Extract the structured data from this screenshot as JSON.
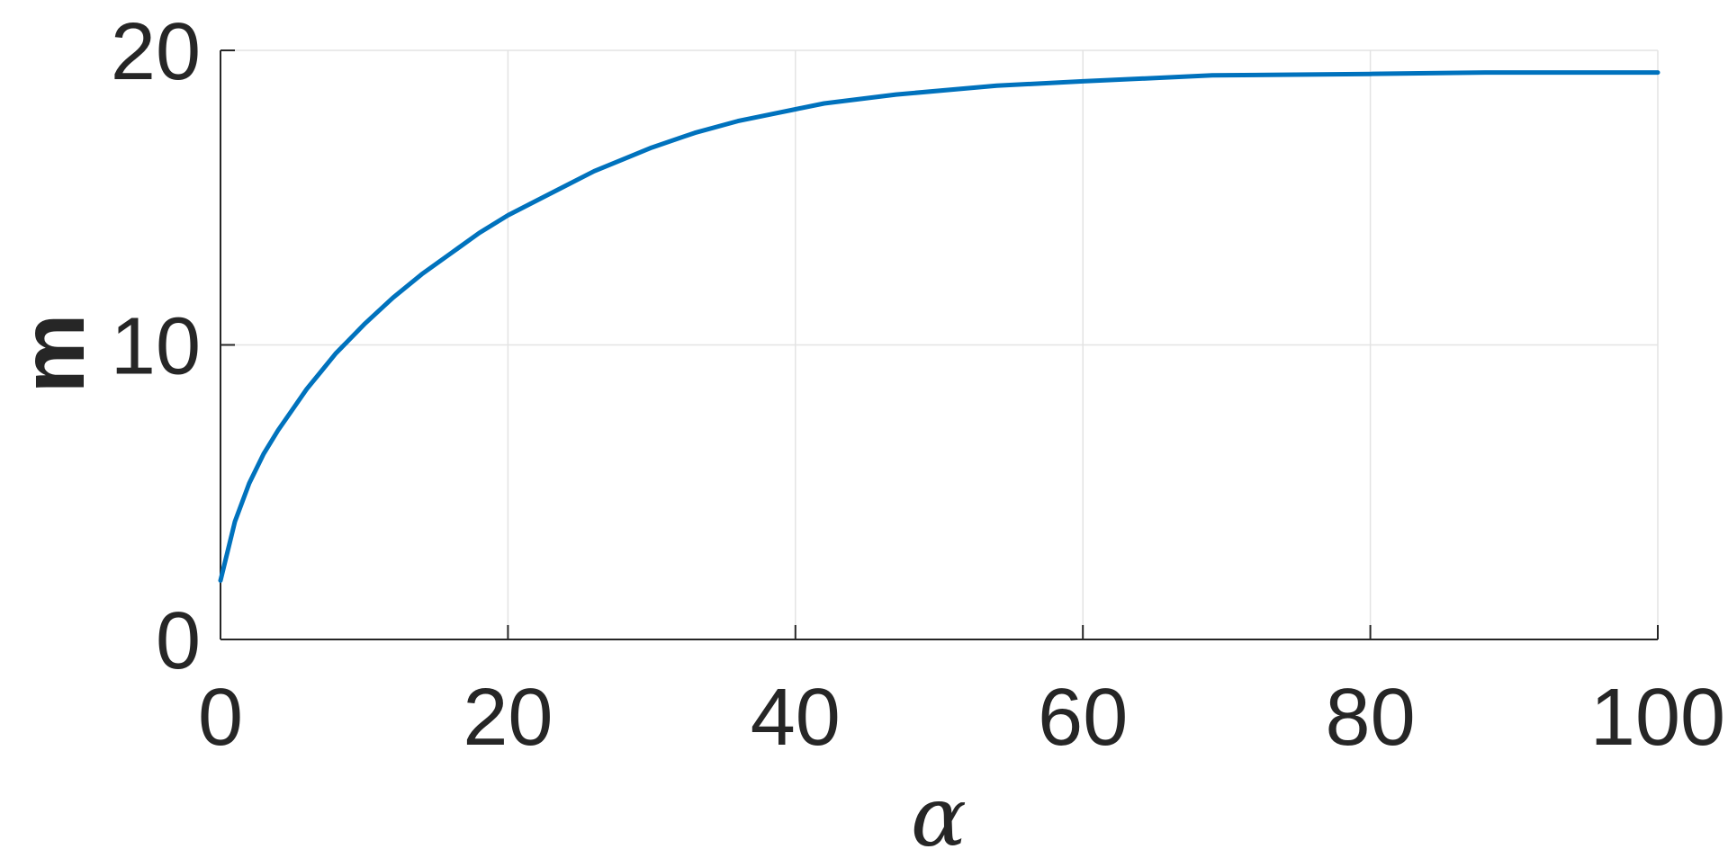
{
  "chart_data": {
    "type": "line",
    "xlabel": "α",
    "ylabel": "m",
    "xlim": [
      0,
      100
    ],
    "ylim": [
      0,
      20
    ],
    "xticks": [
      0,
      20,
      40,
      60,
      80,
      100
    ],
    "yticks": [
      0,
      10,
      20
    ],
    "xtick_labels": [
      "0",
      "20",
      "40",
      "60",
      "80",
      "100"
    ],
    "ytick_labels": [
      "0",
      "10",
      "20"
    ],
    "grid": true,
    "series": [
      {
        "color": "#0072bd",
        "x": [
          0,
          1,
          2,
          3,
          4,
          5,
          6,
          7,
          8,
          10,
          12,
          14,
          16,
          18,
          20,
          22,
          24,
          26,
          28,
          30,
          33,
          36,
          40,
          42,
          47,
          54,
          60,
          69,
          80,
          88,
          100
        ],
        "y": [
          2.0,
          4.0,
          5.3,
          6.3,
          7.1,
          7.8,
          8.5,
          9.1,
          9.7,
          10.7,
          11.6,
          12.4,
          13.1,
          13.8,
          14.4,
          14.9,
          15.4,
          15.9,
          16.3,
          16.7,
          17.2,
          17.6,
          18.0,
          18.2,
          18.5,
          18.8,
          18.95,
          19.15,
          19.2,
          19.25,
          19.25
        ]
      }
    ]
  }
}
